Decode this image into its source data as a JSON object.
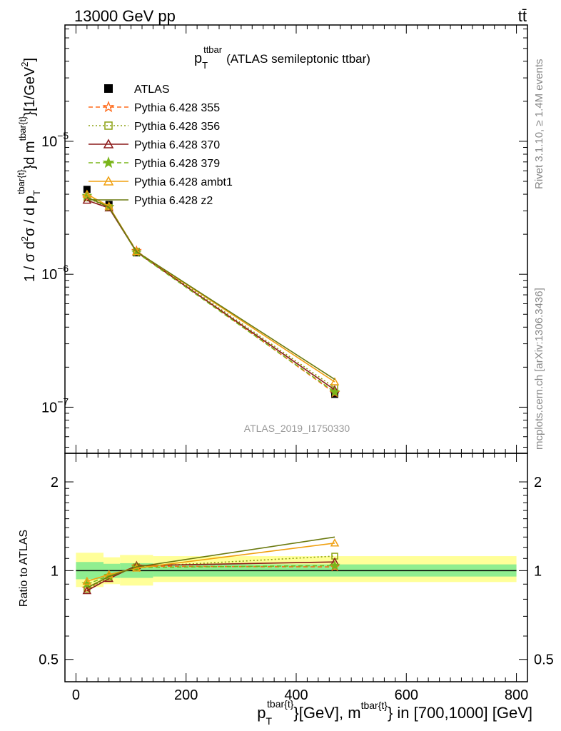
{
  "header": {
    "left": "13000 GeV pp",
    "right": "tt̄"
  },
  "side_texts": {
    "rivet": "Rivet 3.1.10, ≥ 1.4M events",
    "mcplots": "mcplots.cern.ch [arXiv:1306.3436]"
  },
  "colors": {
    "data": "#000000",
    "band_inner": "#90ee90",
    "band_outer": "#ffff99",
    "p355": "#ff6a1a",
    "p356": "#8ca010",
    "p370": "#8b1a1a",
    "p379": "#7ab51a",
    "ambt1": "#f0a010",
    "z2": "#6b7a10",
    "watermark": "#999999"
  },
  "chart_data": [
    {
      "type": "line",
      "panel": "main",
      "title_main": "p",
      "title_sub": "T",
      "title_sup": "ttbar",
      "title_rest": "(ATLAS semileptonic ttbar)",
      "ylabel": "1 / σ d²σ / d p_T^{tbar{t}} d m^{tbar{t}} [1/GeV²]",
      "ylabel_parts": {
        "lead": "1 / σ d",
        "sigma_sup": "2",
        "sigma": "σ  /  d p",
        "pt_sub": "T",
        "pt_sup": "tbar{t}",
        "mid": "}d m",
        "m_sup": "tbar{t}",
        "tail": "}[1/GeV",
        "gev_sup": "2",
        "end": "]"
      },
      "watermark": "ATLAS_2019_I1750330",
      "yscale": "log",
      "ylim": [
        4.5e-08,
        7.5e-05
      ],
      "xlim": [
        -20,
        820
      ],
      "yticks": [
        {
          "value": 1e-07,
          "base": "10",
          "exp": "−7"
        },
        {
          "value": 1e-06,
          "base": "10",
          "exp": "−6"
        },
        {
          "value": 1e-05,
          "base": "10",
          "exp": "−5"
        }
      ],
      "legend_position": "top-left",
      "x": [
        20,
        60,
        110,
        470
      ],
      "series": [
        {
          "name": "ATLAS",
          "marker": "square-filled",
          "line": "none",
          "color_key": "data",
          "values": [
            4.35e-06,
            3.35e-06,
            1.45e-06,
            1.25e-07
          ]
        },
        {
          "name": "Pythia 6.428 355",
          "marker": "star-open",
          "line": "dashed",
          "color_key": "p355",
          "values": [
            3.8e-06,
            3.2e-06,
            1.5e-06,
            1.28e-07
          ]
        },
        {
          "name": "Pythia 6.428 356",
          "marker": "square-open",
          "line": "dotted",
          "color_key": "p356",
          "values": [
            3.75e-06,
            3.18e-06,
            1.49e-06,
            1.4e-07
          ]
        },
        {
          "name": "Pythia 6.428 370",
          "marker": "triangle-open",
          "line": "solid",
          "color_key": "p370",
          "values": [
            3.6e-06,
            3.15e-06,
            1.47e-06,
            1.35e-07
          ]
        },
        {
          "name": "Pythia 6.428 379",
          "marker": "star-filled",
          "line": "dashed",
          "color_key": "p379",
          "values": [
            3.9e-06,
            3.22e-06,
            1.46e-06,
            1.3e-07
          ]
        },
        {
          "name": "Pythia 6.428 ambt1",
          "marker": "triangle-open",
          "line": "solid",
          "color_key": "ambt1",
          "values": [
            4e-06,
            3.25e-06,
            1.48e-06,
            1.55e-07
          ]
        },
        {
          "name": "Pythia 6.428 z2",
          "marker": "none",
          "line": "solid",
          "color_key": "z2",
          "values": [
            3.8e-06,
            3.2e-06,
            1.48e-06,
            1.62e-07
          ]
        }
      ]
    },
    {
      "type": "line",
      "panel": "ratio",
      "ylabel": "Ratio to ATLAS",
      "yscale": "log",
      "ylim": [
        0.42,
        2.5
      ],
      "xlim": [
        -20,
        820
      ],
      "yticks": [
        0.5,
        1,
        2
      ],
      "ytick_labels": [
        "0.5",
        "1",
        "2"
      ],
      "xticks": [
        0,
        200,
        400,
        600,
        800
      ],
      "xtick_labels": [
        "0",
        "200",
        "400",
        "600",
        "800"
      ],
      "xlabel": "p_T^{tbar{t}}[GeV], m^{tbar{t}} in [700,1000] [GeV]",
      "xlabel_parts": {
        "p": "p",
        "p_sub": "T",
        "p_sup": "tbar{t}",
        "mid": "}[GeV], m",
        "m_sup": "tbar{t}",
        "end": "} in [700,1000] [GeV]"
      },
      "band_bins": [
        {
          "x0": 0,
          "x1": 50,
          "inner": [
            0.935,
            1.07
          ],
          "outer": [
            0.88,
            1.15
          ]
        },
        {
          "x0": 50,
          "x1": 80,
          "inner": [
            0.945,
            1.055
          ],
          "outer": [
            0.9,
            1.11
          ]
        },
        {
          "x0": 80,
          "x1": 140,
          "inner": [
            0.945,
            1.06
          ],
          "outer": [
            0.89,
            1.13
          ]
        },
        {
          "x0": 140,
          "x1": 800,
          "inner": [
            0.955,
            1.05
          ],
          "outer": [
            0.915,
            1.12
          ]
        }
      ],
      "x": [
        20,
        60,
        110,
        470
      ],
      "series": [
        {
          "name": "Pythia 6.428 355",
          "color_key": "p355",
          "values": [
            0.87,
            0.955,
            1.035,
            1.03
          ]
        },
        {
          "name": "Pythia 6.428 356",
          "color_key": "p356",
          "values": [
            0.865,
            0.95,
            1.03,
            1.12
          ]
        },
        {
          "name": "Pythia 6.428 370",
          "color_key": "p370",
          "values": [
            0.855,
            0.94,
            1.04,
            1.07
          ]
        },
        {
          "name": "Pythia 6.428 379",
          "color_key": "p379",
          "values": [
            0.9,
            0.96,
            1.025,
            1.04
          ]
        },
        {
          "name": "Pythia 6.428 ambt1",
          "color_key": "ambt1",
          "values": [
            0.92,
            0.97,
            1.02,
            1.24
          ]
        },
        {
          "name": "Pythia 6.428 z2",
          "color_key": "z2",
          "values": [
            0.875,
            0.955,
            1.03,
            1.3
          ]
        }
      ]
    }
  ]
}
